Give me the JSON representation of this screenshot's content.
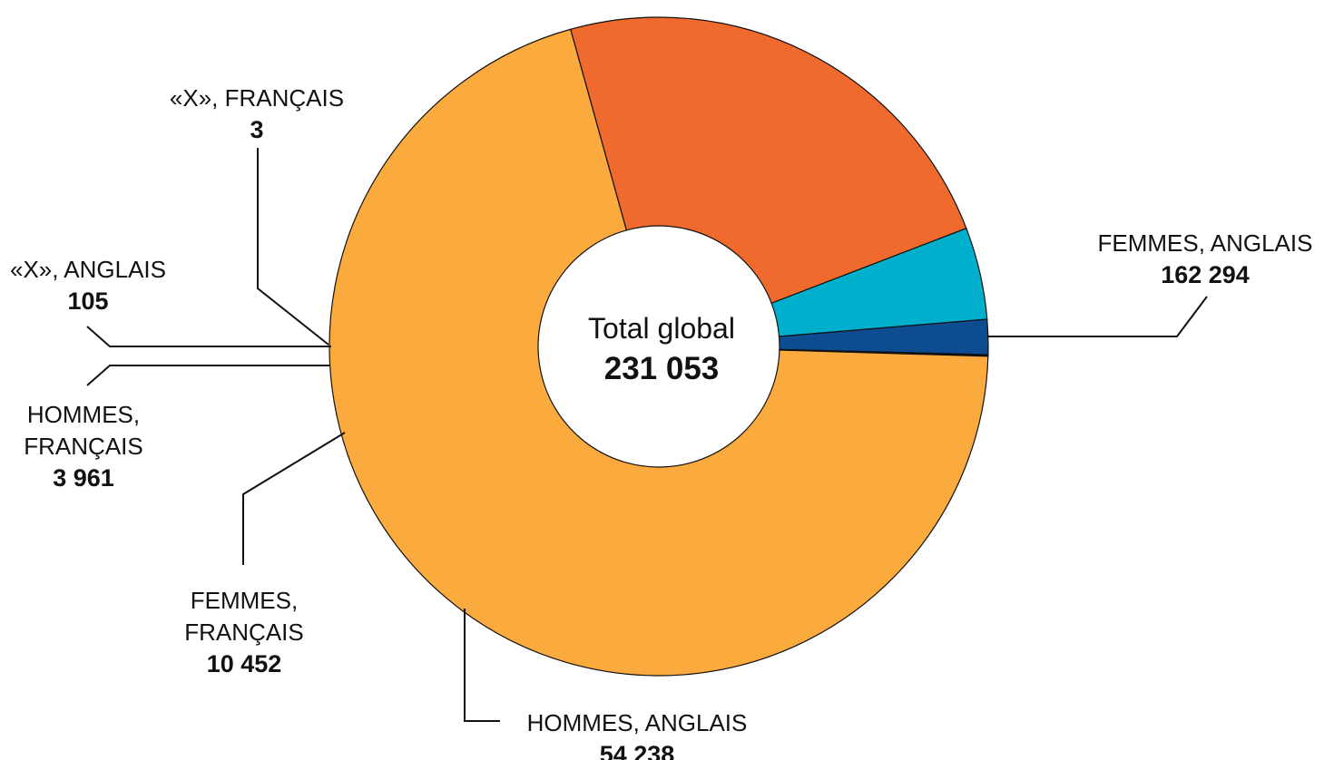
{
  "chart_data": {
    "type": "pie",
    "center": {
      "title": "Total global",
      "value": "231 053"
    },
    "total": 231053,
    "slices": [
      {
        "name_lines": [
          "FEMMES, ANGLAIS"
        ],
        "label": "162 294",
        "value": 162294,
        "color": "#FBAB3D"
      },
      {
        "name_lines": [
          "HOMMES, ANGLAIS"
        ],
        "label": "54 238",
        "value": 54238,
        "color": "#F06A2D"
      },
      {
        "name_lines": [
          "FEMMES,",
          "FRANÇAIS"
        ],
        "label": "10 452",
        "value": 10452,
        "color": "#00AFCB"
      },
      {
        "name_lines": [
          "HOMMES,",
          "FRANÇAIS"
        ],
        "label": "3 961",
        "value": 3961,
        "color": "#0E4C92"
      },
      {
        "name_lines": [
          "«X», ANGLAIS"
        ],
        "label": "105",
        "value": 105,
        "color": "#1F2E4D"
      },
      {
        "name_lines": [
          "«X», FRANÇAIS"
        ],
        "label": "3",
        "value": 3,
        "color": "#1F2E4D"
      }
    ]
  }
}
